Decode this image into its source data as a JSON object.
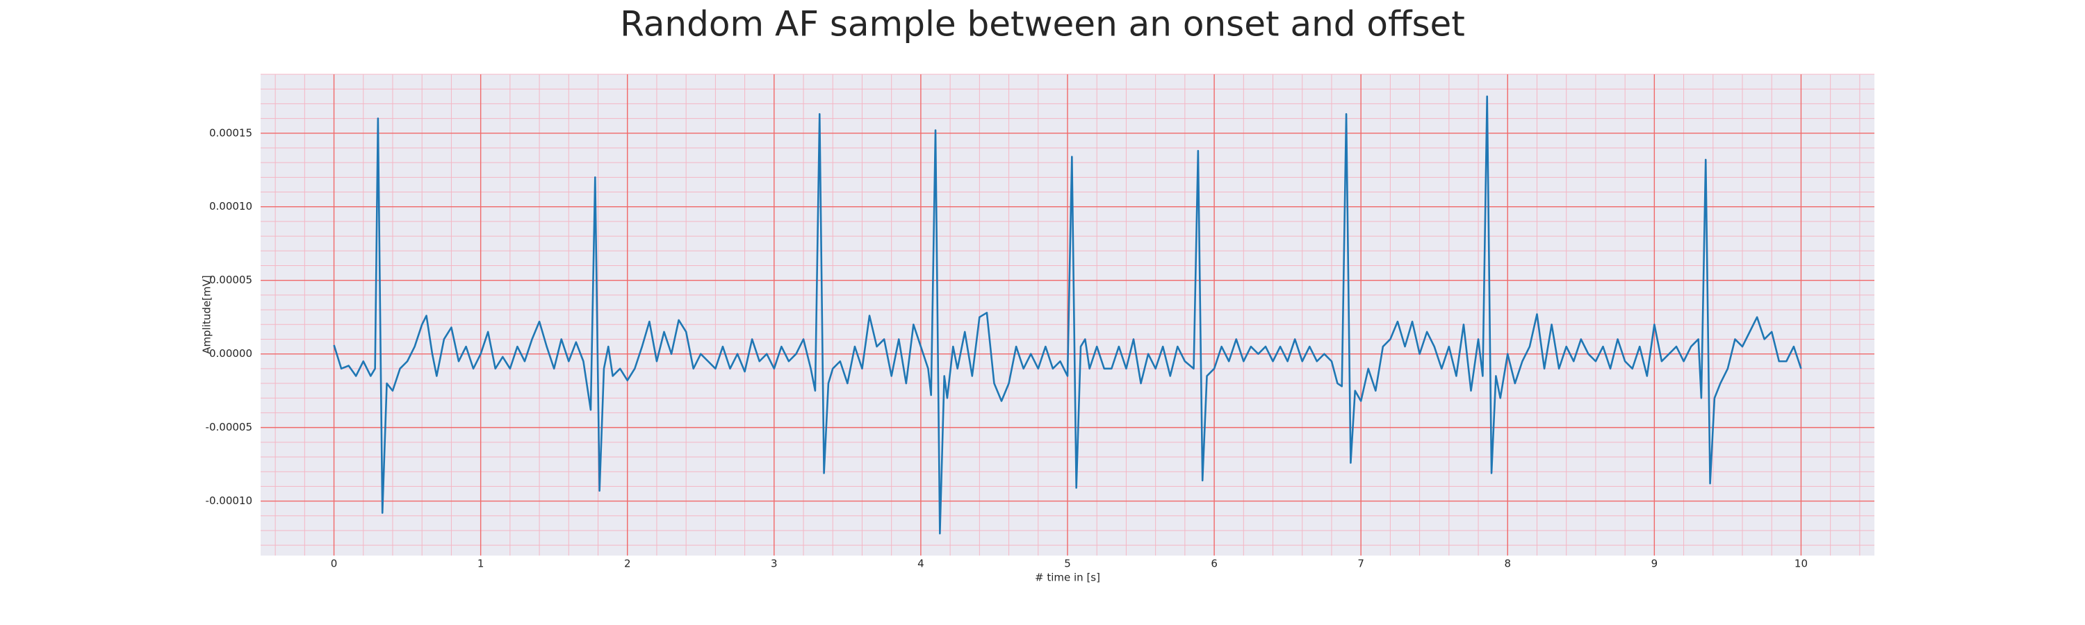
{
  "chart_data": {
    "type": "line",
    "title": "Random AF sample between an onset and offset",
    "x_label": "# time in [s]",
    "y_label": "Amplitude[mV]",
    "color": "#1f77b4",
    "grid": true,
    "minor_grid": true,
    "xlim": [
      -0.5,
      10.5
    ],
    "xticks": [
      0,
      1,
      2,
      3,
      4,
      5,
      6,
      7,
      8,
      9,
      10
    ],
    "ylim": [
      -0.000137,
      0.00019
    ],
    "yticks": [
      {
        "value": -0.0001,
        "label": "-0.00010"
      },
      -5e-05,
      {
        "value": 0,
        "label": "0.00000"
      },
      5e-05,
      {
        "value": 0.0001,
        "label": "0.00010"
      },
      0.00015
    ],
    "x": [
      0,
      0.05,
      0.1,
      0.15,
      0.2,
      0.25,
      0.28,
      0.3,
      0.33,
      0.36,
      0.4,
      0.45,
      0.5,
      0.55,
      0.6,
      0.63,
      0.67,
      0.7,
      0.75,
      0.8,
      0.85,
      0.9,
      0.95,
      1,
      1.05,
      1.1,
      1.15,
      1.2,
      1.25,
      1.3,
      1.35,
      1.4,
      1.45,
      1.5,
      1.55,
      1.6,
      1.65,
      1.7,
      1.75,
      1.78,
      1.81,
      1.84,
      1.87,
      1.9,
      1.95,
      2,
      2.05,
      2.1,
      2.15,
      2.2,
      2.25,
      2.3,
      2.35,
      2.4,
      2.45,
      2.5,
      2.55,
      2.6,
      2.65,
      2.7,
      2.75,
      2.8,
      2.85,
      2.9,
      2.95,
      3,
      3.05,
      3.1,
      3.15,
      3.2,
      3.25,
      3.28,
      3.31,
      3.34,
      3.37,
      3.4,
      3.45,
      3.5,
      3.55,
      3.6,
      3.65,
      3.7,
      3.75,
      3.8,
      3.85,
      3.9,
      3.95,
      4,
      4.05,
      4.07,
      4.1,
      4.13,
      4.16,
      4.18,
      4.22,
      4.25,
      4.3,
      4.35,
      4.4,
      4.45,
      4.5,
      4.55,
      4.6,
      4.65,
      4.7,
      4.75,
      4.8,
      4.85,
      4.9,
      4.95,
      5,
      5.03,
      5.06,
      5.09,
      5.12,
      5.15,
      5.2,
      5.25,
      5.3,
      5.35,
      5.4,
      5.45,
      5.5,
      5.55,
      5.6,
      5.65,
      5.7,
      5.75,
      5.8,
      5.86,
      5.89,
      5.92,
      5.95,
      6,
      6.05,
      6.1,
      6.15,
      6.2,
      6.25,
      6.3,
      6.35,
      6.4,
      6.45,
      6.5,
      6.55,
      6.6,
      6.65,
      6.7,
      6.75,
      6.8,
      6.84,
      6.87,
      6.9,
      6.93,
      6.96,
      7,
      7.05,
      7.1,
      7.15,
      7.2,
      7.25,
      7.3,
      7.35,
      7.4,
      7.45,
      7.5,
      7.55,
      7.6,
      7.65,
      7.7,
      7.75,
      7.8,
      7.83,
      7.86,
      7.89,
      7.92,
      7.95,
      8,
      8.05,
      8.1,
      8.15,
      8.2,
      8.25,
      8.3,
      8.35,
      8.4,
      8.45,
      8.5,
      8.55,
      8.6,
      8.65,
      8.7,
      8.75,
      8.8,
      8.85,
      8.9,
      8.95,
      9,
      9.05,
      9.1,
      9.15,
      9.2,
      9.25,
      9.3,
      9.32,
      9.35,
      9.38,
      9.41,
      9.45,
      9.5,
      9.55,
      9.6,
      9.65,
      9.7,
      9.75,
      9.8,
      9.85,
      9.9,
      9.95,
      10
    ],
    "values": [
      6e-06,
      -1e-05,
      -8e-06,
      -1.5e-05,
      -5e-06,
      -1.5e-05,
      -1e-05,
      0.00016,
      -0.000108,
      -2e-05,
      -2.5e-05,
      -1e-05,
      -5e-06,
      5e-06,
      2e-05,
      2.6e-05,
      0,
      -1.5e-05,
      1e-05,
      1.8e-05,
      -5e-06,
      5e-06,
      -1e-05,
      0,
      1.5e-05,
      -1e-05,
      -2e-06,
      -1e-05,
      5e-06,
      -5e-06,
      1e-05,
      2.2e-05,
      5e-06,
      -1e-05,
      1e-05,
      -5e-06,
      8e-06,
      -5e-06,
      -3.8e-05,
      0.00012,
      -9.3e-05,
      -1e-05,
      5e-06,
      -1.5e-05,
      -1e-05,
      -1.8e-05,
      -1e-05,
      5e-06,
      2.2e-05,
      -5e-06,
      1.5e-05,
      0,
      2.3e-05,
      1.5e-05,
      -1e-05,
      0,
      -5e-06,
      -1e-05,
      5e-06,
      -1e-05,
      0,
      -1.2e-05,
      1e-05,
      -5e-06,
      0,
      -1e-05,
      5e-06,
      -5e-06,
      0,
      1e-05,
      -1e-05,
      -2.5e-05,
      0.000163,
      -8.1e-05,
      -2e-05,
      -1e-05,
      -5e-06,
      -2e-05,
      5e-06,
      -1e-05,
      2.6e-05,
      5e-06,
      1e-05,
      -1.5e-05,
      1e-05,
      -2e-05,
      2e-05,
      5e-06,
      -1e-05,
      -2.8e-05,
      0.000152,
      -0.000122,
      -1.5e-05,
      -3e-05,
      5e-06,
      -1e-05,
      1.5e-05,
      -1.5e-05,
      2.5e-05,
      2.8e-05,
      -2e-05,
      -3.2e-05,
      -2e-05,
      5e-06,
      -1e-05,
      0,
      -1e-05,
      5e-06,
      -1e-05,
      -5e-06,
      -1.5e-05,
      0.000134,
      -9.1e-05,
      5e-06,
      1e-05,
      -1e-05,
      5e-06,
      -1e-05,
      -1e-05,
      5e-06,
      -1e-05,
      1e-05,
      -2e-05,
      0,
      -1e-05,
      5e-06,
      -1.5e-05,
      5e-06,
      -5e-06,
      -1e-05,
      0.000138,
      -8.6e-05,
      -1.5e-05,
      -1e-05,
      5e-06,
      -5e-06,
      1e-05,
      -5e-06,
      5e-06,
      0,
      5e-06,
      -5e-06,
      5e-06,
      -5e-06,
      1e-05,
      -5e-06,
      5e-06,
      -5e-06,
      0,
      -5e-06,
      -2e-05,
      -2.2e-05,
      0.000163,
      -7.4e-05,
      -2.5e-05,
      -3.2e-05,
      -1e-05,
      -2.5e-05,
      5e-06,
      1e-05,
      2.2e-05,
      5e-06,
      2.2e-05,
      0,
      1.5e-05,
      5e-06,
      -1e-05,
      5e-06,
      -1.5e-05,
      2e-05,
      -2.5e-05,
      1e-05,
      -1.5e-05,
      0.000175,
      -8.1e-05,
      -1.5e-05,
      -3e-05,
      0,
      -2e-05,
      -5e-06,
      5e-06,
      2.7e-05,
      -1e-05,
      2e-05,
      -1e-05,
      5e-06,
      -5e-06,
      1e-05,
      0,
      -5e-06,
      5e-06,
      -1e-05,
      1e-05,
      -5e-06,
      -1e-05,
      5e-06,
      -1.5e-05,
      2e-05,
      -5e-06,
      0,
      5e-06,
      -5e-06,
      5e-06,
      1e-05,
      -3e-05,
      0.000132,
      -8.8e-05,
      -3e-05,
      -2e-05,
      -1e-05,
      1e-05,
      5e-06,
      1.5e-05,
      2.5e-05,
      1e-05,
      1.5e-05,
      -5e-06,
      -5e-06,
      5e-06,
      -1e-05
    ]
  }
}
